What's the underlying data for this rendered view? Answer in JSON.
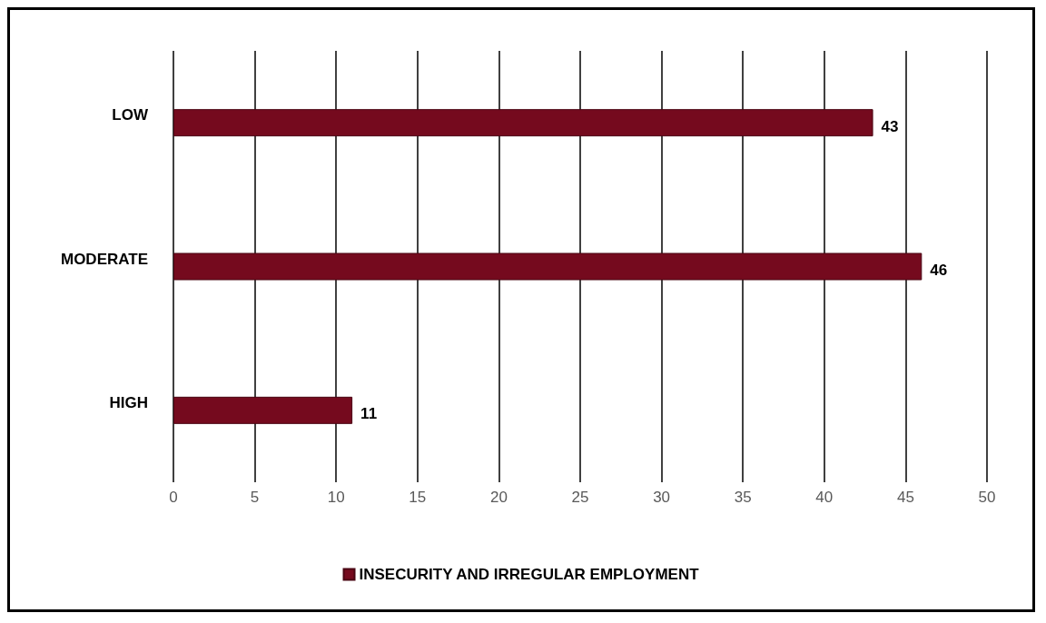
{
  "chart_data": {
    "type": "bar",
    "orientation": "horizontal",
    "categories": [
      "LOW",
      "MODERATE",
      "HIGH"
    ],
    "series": [
      {
        "name": "INSECURITY AND IRREGULAR EMPLOYMENT",
        "color": "#750a1e",
        "values": [
          43,
          46,
          11
        ]
      }
    ],
    "xlim": [
      0,
      50
    ],
    "xticks": [
      0,
      5,
      10,
      15,
      20,
      25,
      30,
      35,
      40,
      45,
      50
    ],
    "grid": "x",
    "legend": "bottom",
    "data_labels": true
  }
}
